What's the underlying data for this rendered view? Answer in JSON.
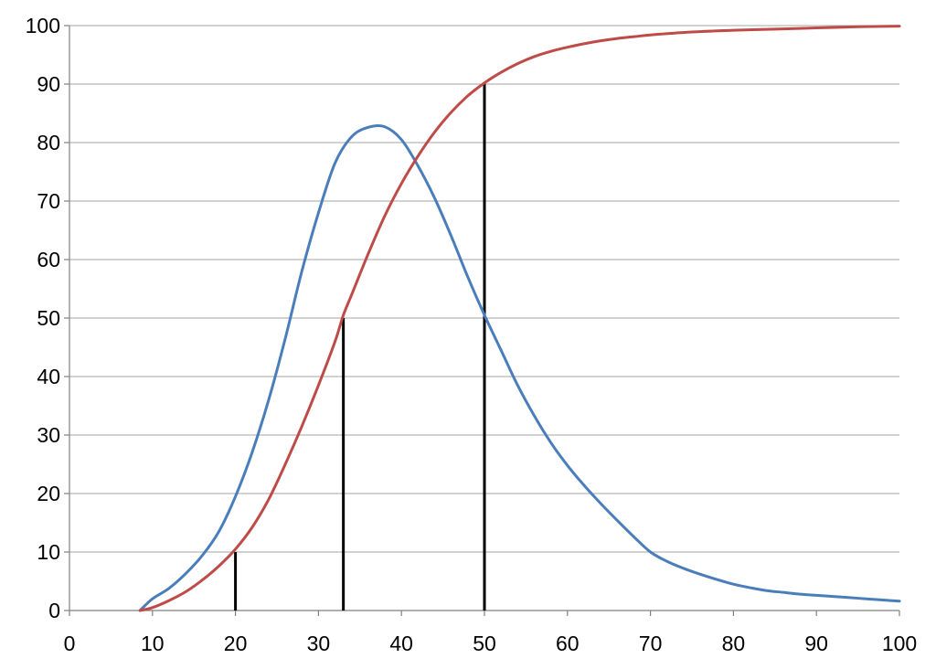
{
  "chart_data": {
    "type": "line",
    "title": "",
    "xlabel": "",
    "ylabel": "",
    "xlim": [
      0,
      100
    ],
    "ylim": [
      0,
      100
    ],
    "x_ticks": [
      "0",
      "10",
      "20",
      "30",
      "40",
      "50",
      "60",
      "70",
      "80",
      "90",
      "100"
    ],
    "y_ticks": [
      "0",
      "10",
      "20",
      "30",
      "40",
      "50",
      "60",
      "70",
      "80",
      "90",
      "100"
    ],
    "grid": true,
    "legend": "none",
    "series": [
      {
        "color": "#4a7ebb",
        "points": [
          [
            8.5,
            0
          ],
          [
            10,
            2
          ],
          [
            12,
            3.8
          ],
          [
            14,
            6.3
          ],
          [
            16,
            9.4
          ],
          [
            18,
            13.5
          ],
          [
            20,
            19.5
          ],
          [
            22,
            27
          ],
          [
            24,
            36
          ],
          [
            26,
            46.5
          ],
          [
            28,
            58
          ],
          [
            30,
            68
          ],
          [
            32,
            76.5
          ],
          [
            34,
            81
          ],
          [
            36,
            82.6
          ],
          [
            38,
            82.7
          ],
          [
            40,
            80.5
          ],
          [
            42,
            76
          ],
          [
            44,
            70.5
          ],
          [
            46,
            64
          ],
          [
            48,
            57
          ],
          [
            50,
            50.5
          ],
          [
            52,
            44.5
          ],
          [
            54,
            38.5
          ],
          [
            56,
            33.3
          ],
          [
            58,
            28.7
          ],
          [
            60,
            24.8
          ],
          [
            62,
            21.4
          ],
          [
            64,
            18.3
          ],
          [
            66,
            15.4
          ],
          [
            68,
            12.6
          ],
          [
            70,
            10
          ],
          [
            72,
            8.4
          ],
          [
            74,
            7.2
          ],
          [
            76,
            6.2
          ],
          [
            78,
            5.3
          ],
          [
            80,
            4.5
          ],
          [
            82,
            3.9
          ],
          [
            84,
            3.4
          ],
          [
            86,
            3.1
          ],
          [
            88,
            2.8
          ],
          [
            90,
            2.6
          ],
          [
            92,
            2.4
          ],
          [
            94,
            2.2
          ],
          [
            96,
            2.0
          ],
          [
            98,
            1.8
          ],
          [
            100,
            1.6
          ]
        ]
      },
      {
        "color": "#be4b48",
        "points": [
          [
            8.5,
            0
          ],
          [
            10,
            0.5
          ],
          [
            12,
            1.7
          ],
          [
            14,
            3.2
          ],
          [
            16,
            5.2
          ],
          [
            18,
            7.6
          ],
          [
            20,
            10.5
          ],
          [
            22,
            14.2
          ],
          [
            24,
            19
          ],
          [
            26,
            25
          ],
          [
            28,
            31.5
          ],
          [
            30,
            38.5
          ],
          [
            32,
            46
          ],
          [
            33,
            50.5
          ],
          [
            34,
            54
          ],
          [
            36,
            61
          ],
          [
            38,
            67.5
          ],
          [
            40,
            73
          ],
          [
            42,
            77.7
          ],
          [
            44,
            81.8
          ],
          [
            46,
            85.2
          ],
          [
            48,
            88
          ],
          [
            50,
            90.2
          ],
          [
            52,
            92
          ],
          [
            54,
            93.5
          ],
          [
            56,
            94.7
          ],
          [
            58,
            95.6
          ],
          [
            60,
            96.3
          ],
          [
            62,
            96.9
          ],
          [
            64,
            97.4
          ],
          [
            66,
            97.8
          ],
          [
            68,
            98.1
          ],
          [
            70,
            98.4
          ],
          [
            75,
            98.9
          ],
          [
            80,
            99.2
          ],
          [
            85,
            99.4
          ],
          [
            90,
            99.6
          ],
          [
            95,
            99.8
          ],
          [
            100,
            99.9
          ]
        ]
      }
    ],
    "vertical_markers": [
      {
        "x": 20,
        "y_top": 10
      },
      {
        "x": 33,
        "y_top": 50
      },
      {
        "x": 50,
        "y_top": 90
      }
    ]
  }
}
